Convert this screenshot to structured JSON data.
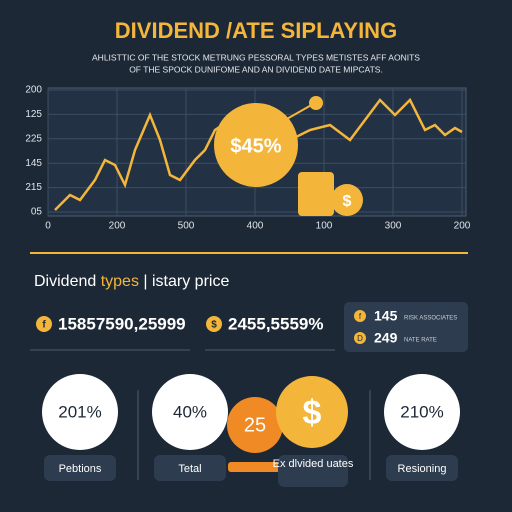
{
  "header": {
    "title": "DIVIDEND /ATE SIPLAYING",
    "subtitle": [
      "AHLISTTIC OF THE STOCK METRUNG PESSORAL TYPES METISTES AFF AONITS",
      "OF THE SPOCK DUNIFOME AND AN DIVIDEND DATE MIPCATS."
    ]
  },
  "chart": {
    "y_labels": [
      "200",
      "125",
      "225",
      "145",
      "215",
      "05"
    ],
    "x_labels": [
      "0",
      "200",
      "500",
      "400",
      "100",
      "300",
      "200"
    ],
    "bubble": "$45%",
    "coin": "$"
  },
  "section": {
    "heading": [
      "Dividend ",
      "types",
      " | istary price"
    ],
    "stats": [
      {
        "icon": "f",
        "text": "15857590,25999"
      },
      {
        "icon": "$",
        "text": "2455,5559%"
      }
    ],
    "box": [
      {
        "icon": "f",
        "value": "145",
        "note": "RISK ASSOCIATES"
      },
      {
        "icon": "D",
        "value": "249",
        "note": "NATE RATE"
      }
    ]
  },
  "circles": [
    {
      "value": "201%",
      "label": "Pebtions"
    },
    {
      "value": "40%",
      "label": "Tetal"
    },
    {
      "value": "25",
      "label": "Ex dlvided uates"
    },
    {
      "value": "$"
    },
    {
      "value": "210%",
      "label": "Resioning"
    }
  ]
}
